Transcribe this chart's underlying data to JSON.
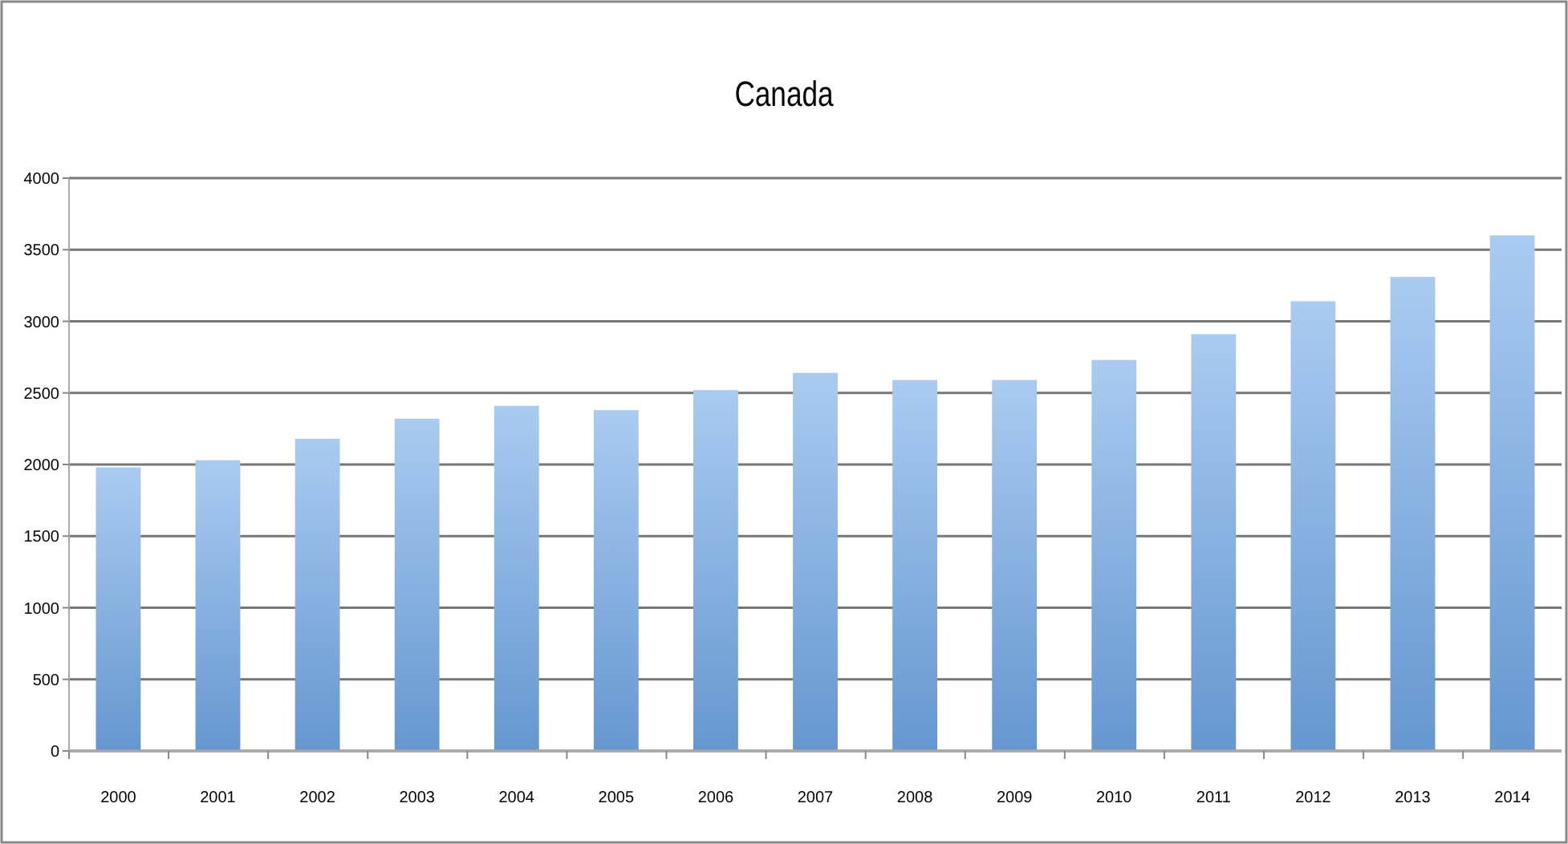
{
  "chart_data": {
    "type": "bar",
    "title": "Canada",
    "categories": [
      "2000",
      "2001",
      "2002",
      "2003",
      "2004",
      "2005",
      "2006",
      "2007",
      "2008",
      "2009",
      "2010",
      "2011",
      "2012",
      "2013",
      "2014"
    ],
    "values": [
      1980,
      2030,
      2180,
      2320,
      2410,
      2380,
      2520,
      2640,
      2590,
      2590,
      2730,
      2910,
      3140,
      3310,
      3600
    ],
    "color": "#70a8e8",
    "ylim": [
      0,
      4000
    ],
    "yticks": [
      0,
      500,
      1000,
      1500,
      2000,
      2500,
      3000,
      3500,
      4000
    ],
    "grid": "y"
  }
}
